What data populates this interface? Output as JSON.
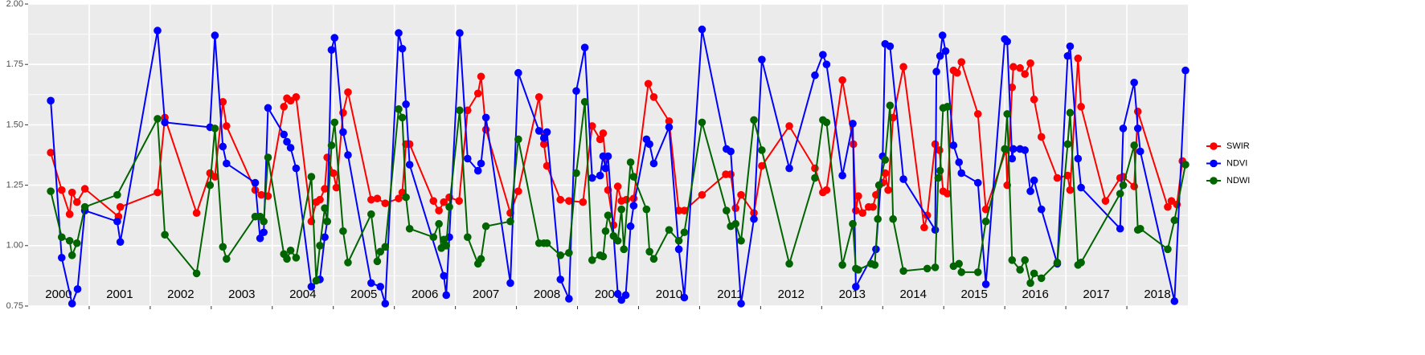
{
  "chart_data": {
    "type": "line",
    "xlim": [
      2000,
      2019
    ],
    "ylim": [
      0.75,
      2.0
    ],
    "yticks": [
      {
        "value": 0.75,
        "label": "0.75"
      },
      {
        "value": 1.0,
        "label": "1.00"
      },
      {
        "value": 1.25,
        "label": "1.25"
      },
      {
        "value": 1.5,
        "label": "1.50"
      },
      {
        "value": 1.75,
        "label": "1.75"
      },
      {
        "value": 2.0,
        "label": "2.00"
      }
    ],
    "yminor": [
      0.875,
      1.125,
      1.375,
      1.625,
      1.875
    ],
    "xgrid": [
      2001,
      2002,
      2003,
      2004,
      2005,
      2006,
      2007,
      2008,
      2009,
      2010,
      2011,
      2012,
      2013,
      2014,
      2015,
      2016,
      2017,
      2018
    ],
    "xticks": [
      {
        "value": 2000.5,
        "label": "2000"
      },
      {
        "value": 2001.5,
        "label": "2001"
      },
      {
        "value": 2002.5,
        "label": "2002"
      },
      {
        "value": 2003.5,
        "label": "2003"
      },
      {
        "value": 2004.5,
        "label": "2004"
      },
      {
        "value": 2005.5,
        "label": "2005"
      },
      {
        "value": 2006.5,
        "label": "2006"
      },
      {
        "value": 2007.5,
        "label": "2007"
      },
      {
        "value": 2008.5,
        "label": "2008"
      },
      {
        "value": 2009.5,
        "label": "2009"
      },
      {
        "value": 2010.5,
        "label": "2010"
      },
      {
        "value": 2011.5,
        "label": "2011"
      },
      {
        "value": 2012.5,
        "label": "2012"
      },
      {
        "value": 2013.5,
        "label": "2013"
      },
      {
        "value": 2014.5,
        "label": "2014"
      },
      {
        "value": 2015.5,
        "label": "2015"
      },
      {
        "value": 2016.5,
        "label": "2016"
      },
      {
        "value": 2017.5,
        "label": "2017"
      },
      {
        "value": 2018.5,
        "label": "2018"
      }
    ],
    "grid": true,
    "legend": "right",
    "series": [
      {
        "name": "SWIR",
        "color": "#ff0000",
        "x": [
          2000.37,
          2000.55,
          2000.68,
          2000.72,
          2000.8,
          2000.93,
          2001.48,
          2001.51,
          2002.12,
          2002.24,
          2002.76,
          2002.98,
          2003.06,
          2003.19,
          2003.25,
          2003.72,
          2003.82,
          2003.93,
          2004.19,
          2004.24,
          2004.3,
          2004.39,
          2004.64,
          2004.72,
          2004.78,
          2004.86,
          2004.9,
          2005.0,
          2005.05,
          2005.16,
          2005.24,
          2005.62,
          2005.72,
          2005.85,
          2006.07,
          2006.13,
          2006.19,
          2006.25,
          2006.64,
          2006.73,
          2006.81,
          2006.9,
          2007.06,
          2007.2,
          2007.37,
          2007.42,
          2007.5,
          2007.9,
          2008.03,
          2008.37,
          2008.45,
          2008.5,
          2008.72,
          2008.86,
          2009.09,
          2009.24,
          2009.37,
          2009.42,
          2009.5,
          2009.59,
          2009.66,
          2009.72,
          2009.8,
          2009.92,
          2010.16,
          2010.25,
          2010.5,
          2010.66,
          2010.75,
          2011.04,
          2011.43,
          2011.51,
          2011.59,
          2011.68,
          2011.89,
          2012.02,
          2012.47,
          2012.89,
          2013.02,
          2013.08,
          2013.34,
          2013.52,
          2013.56,
          2013.6,
          2013.67,
          2013.77,
          2013.84,
          2013.89,
          2013.94,
          2014.0,
          2014.04,
          2014.09,
          2014.17,
          2014.34,
          2014.68,
          2014.73,
          2014.86,
          2014.93,
          2014.99,
          2015.06,
          2015.16,
          2015.22,
          2015.29,
          2015.56,
          2015.69,
          2016.02,
          2016.04,
          2016.12,
          2016.14,
          2016.25,
          2016.33,
          2016.42,
          2016.48,
          2016.6,
          2016.86,
          2017.03,
          2017.07,
          2017.2,
          2017.25,
          2017.65,
          2017.89,
          2017.94,
          2018.12,
          2018.18,
          2018.67,
          2018.73,
          2018.82,
          2018.91
        ],
        "values": [
          1.385,
          1.23,
          1.13,
          1.22,
          1.18,
          1.235,
          1.12,
          1.16,
          1.22,
          1.53,
          1.135,
          1.3,
          1.285,
          1.595,
          1.495,
          1.23,
          1.21,
          1.205,
          1.575,
          1.61,
          1.6,
          1.615,
          1.1,
          1.18,
          1.19,
          1.235,
          1.365,
          1.3,
          1.24,
          1.55,
          1.635,
          1.19,
          1.195,
          1.175,
          1.195,
          1.22,
          1.42,
          1.42,
          1.185,
          1.145,
          1.18,
          1.2,
          1.185,
          1.56,
          1.63,
          1.7,
          1.48,
          1.135,
          1.225,
          1.615,
          1.42,
          1.33,
          1.19,
          1.185,
          1.18,
          1.495,
          1.44,
          1.465,
          1.23,
          1.085,
          1.245,
          1.185,
          1.19,
          1.195,
          1.67,
          1.615,
          1.515,
          1.145,
          1.145,
          1.21,
          1.295,
          1.295,
          1.155,
          1.21,
          1.135,
          1.33,
          1.495,
          1.32,
          1.22,
          1.23,
          1.685,
          1.42,
          1.145,
          1.205,
          1.135,
          1.16,
          1.16,
          1.21,
          1.25,
          1.26,
          1.3,
          1.23,
          1.53,
          1.74,
          1.075,
          1.125,
          1.42,
          1.395,
          1.225,
          1.215,
          1.725,
          1.715,
          1.76,
          1.545,
          1.15,
          1.395,
          1.25,
          1.655,
          1.74,
          1.735,
          1.71,
          1.755,
          1.605,
          1.45,
          1.28,
          1.29,
          1.23,
          1.775,
          1.575,
          1.185,
          1.28,
          1.285,
          1.245,
          1.555,
          1.16,
          1.185,
          1.17,
          1.35
        ]
      },
      {
        "name": "NDVI",
        "color": "#0000ff",
        "x": [
          2000.37,
          2000.55,
          2000.72,
          2000.81,
          2000.93,
          2001.46,
          2001.51,
          2002.12,
          2002.24,
          2002.98,
          2003.06,
          2003.19,
          2003.25,
          2003.72,
          2003.8,
          2003.86,
          2003.93,
          2004.19,
          2004.24,
          2004.3,
          2004.39,
          2004.64,
          2004.78,
          2004.86,
          2004.9,
          2004.97,
          2005.02,
          2005.16,
          2005.24,
          2005.62,
          2005.77,
          2005.85,
          2006.07,
          2006.13,
          2006.19,
          2006.25,
          2006.81,
          2006.85,
          2006.9,
          2007.07,
          2007.2,
          2007.37,
          2007.42,
          2007.5,
          2007.9,
          2008.03,
          2008.37,
          2008.45,
          2008.5,
          2008.72,
          2008.86,
          2008.98,
          2009.12,
          2009.24,
          2009.37,
          2009.42,
          2009.46,
          2009.5,
          2009.66,
          2009.72,
          2009.79,
          2009.87,
          2009.92,
          2010.13,
          2010.18,
          2010.25,
          2010.5,
          2010.66,
          2010.75,
          2011.04,
          2011.44,
          2011.51,
          2011.68,
          2011.89,
          2012.02,
          2012.47,
          2012.89,
          2013.02,
          2013.08,
          2013.34,
          2013.51,
          2013.56,
          2013.89,
          2014.0,
          2014.04,
          2014.12,
          2014.34,
          2014.86,
          2014.88,
          2014.94,
          2014.98,
          2015.03,
          2015.16,
          2015.25,
          2015.29,
          2015.56,
          2015.69,
          2016.0,
          2016.04,
          2016.12,
          2016.14,
          2016.25,
          2016.33,
          2016.42,
          2016.48,
          2016.6,
          2016.86,
          2017.03,
          2017.07,
          2017.2,
          2017.25,
          2017.89,
          2017.94,
          2018.12,
          2018.18,
          2018.22,
          2018.78,
          2018.96
        ],
        "values": [
          1.6,
          0.95,
          0.76,
          0.82,
          1.145,
          1.1,
          1.015,
          1.89,
          1.51,
          1.49,
          1.87,
          1.41,
          1.34,
          1.26,
          1.03,
          1.055,
          1.57,
          1.46,
          1.43,
          1.405,
          1.32,
          0.83,
          0.86,
          1.035,
          1.1,
          1.81,
          1.86,
          1.47,
          1.375,
          0.845,
          0.83,
          0.76,
          1.88,
          1.815,
          1.585,
          1.335,
          0.875,
          0.795,
          1.035,
          1.88,
          1.36,
          1.31,
          1.34,
          1.53,
          0.845,
          1.715,
          1.475,
          1.445,
          1.47,
          0.86,
          0.78,
          1.64,
          1.82,
          1.28,
          1.29,
          1.37,
          1.32,
          1.37,
          0.8,
          0.775,
          0.795,
          1.08,
          1.165,
          1.44,
          1.42,
          1.34,
          1.49,
          0.985,
          0.785,
          1.895,
          1.4,
          1.39,
          0.76,
          1.11,
          1.77,
          1.32,
          1.705,
          1.79,
          1.75,
          1.29,
          1.505,
          0.83,
          0.985,
          1.37,
          1.835,
          1.825,
          1.275,
          1.065,
          1.72,
          1.785,
          1.87,
          1.805,
          1.415,
          1.345,
          1.3,
          1.26,
          0.84,
          1.855,
          1.845,
          1.36,
          1.4,
          1.4,
          1.395,
          1.225,
          1.27,
          1.15,
          0.925,
          1.785,
          1.825,
          1.36,
          1.24,
          1.07,
          1.485,
          1.675,
          1.485,
          1.39,
          0.77,
          1.725
        ]
      },
      {
        "name": "NDWI",
        "color": "#006400",
        "x": [
          2000.37,
          2000.55,
          2000.68,
          2000.72,
          2000.8,
          2000.93,
          2001.46,
          2002.12,
          2002.24,
          2002.76,
          2002.98,
          2003.06,
          2003.19,
          2003.25,
          2003.72,
          2003.8,
          2003.86,
          2003.93,
          2004.19,
          2004.24,
          2004.3,
          2004.39,
          2004.64,
          2004.72,
          2004.78,
          2004.86,
          2004.9,
          2004.97,
          2005.02,
          2005.16,
          2005.24,
          2005.62,
          2005.72,
          2005.77,
          2005.85,
          2006.07,
          2006.13,
          2006.19,
          2006.25,
          2006.64,
          2006.73,
          2006.77,
          2006.81,
          2006.85,
          2006.9,
          2007.07,
          2007.2,
          2007.37,
          2007.42,
          2007.5,
          2007.9,
          2008.03,
          2008.37,
          2008.45,
          2008.5,
          2008.72,
          2008.86,
          2008.98,
          2009.12,
          2009.24,
          2009.37,
          2009.42,
          2009.46,
          2009.5,
          2009.59,
          2009.66,
          2009.72,
          2009.76,
          2009.87,
          2009.92,
          2010.13,
          2010.18,
          2010.25,
          2010.5,
          2010.66,
          2010.75,
          2011.04,
          2011.44,
          2011.51,
          2011.59,
          2011.68,
          2011.89,
          2012.02,
          2012.47,
          2012.89,
          2013.02,
          2013.08,
          2013.34,
          2013.51,
          2013.56,
          2013.6,
          2013.81,
          2013.87,
          2013.92,
          2013.94,
          2014.04,
          2014.12,
          2014.17,
          2014.34,
          2014.73,
          2014.86,
          2014.91,
          2014.94,
          2014.99,
          2015.06,
          2015.16,
          2015.25,
          2015.29,
          2015.56,
          2015.69,
          2016.0,
          2016.04,
          2016.12,
          2016.25,
          2016.33,
          2016.42,
          2016.48,
          2016.6,
          2016.86,
          2017.03,
          2017.07,
          2017.2,
          2017.25,
          2017.89,
          2017.94,
          2018.12,
          2018.18,
          2018.22,
          2018.67,
          2018.78,
          2018.96
        ],
        "values": [
          1.225,
          1.035,
          1.02,
          0.96,
          1.01,
          1.16,
          1.21,
          1.525,
          1.045,
          0.885,
          1.25,
          1.485,
          0.995,
          0.945,
          1.12,
          1.12,
          1.1,
          1.365,
          0.965,
          0.945,
          0.98,
          0.95,
          1.285,
          0.855,
          1.0,
          1.155,
          1.1,
          1.415,
          1.51,
          1.06,
          0.93,
          1.13,
          0.935,
          0.975,
          0.995,
          1.565,
          1.53,
          1.2,
          1.07,
          1.035,
          1.09,
          0.99,
          1.025,
          1.0,
          1.16,
          1.56,
          1.035,
          0.925,
          0.945,
          1.08,
          1.1,
          1.44,
          1.01,
          1.01,
          1.01,
          0.96,
          0.97,
          1.3,
          1.595,
          0.94,
          0.96,
          0.955,
          1.06,
          1.125,
          1.04,
          1.02,
          1.15,
          0.985,
          1.345,
          1.285,
          1.15,
          0.975,
          0.945,
          1.065,
          1.02,
          1.055,
          1.51,
          1.145,
          1.08,
          1.09,
          1.02,
          1.52,
          1.395,
          0.925,
          1.28,
          1.52,
          1.51,
          0.92,
          1.09,
          0.905,
          0.9,
          0.925,
          0.92,
          1.11,
          1.25,
          1.355,
          1.58,
          1.11,
          0.895,
          0.905,
          0.91,
          1.28,
          1.31,
          1.57,
          1.575,
          0.915,
          0.925,
          0.89,
          0.89,
          1.1,
          1.4,
          1.545,
          0.94,
          0.9,
          0.94,
          0.845,
          0.885,
          0.865,
          0.93,
          1.42,
          1.55,
          0.92,
          0.93,
          1.215,
          1.25,
          1.415,
          1.065,
          1.07,
          0.985,
          1.105,
          1.335
        ]
      }
    ]
  }
}
